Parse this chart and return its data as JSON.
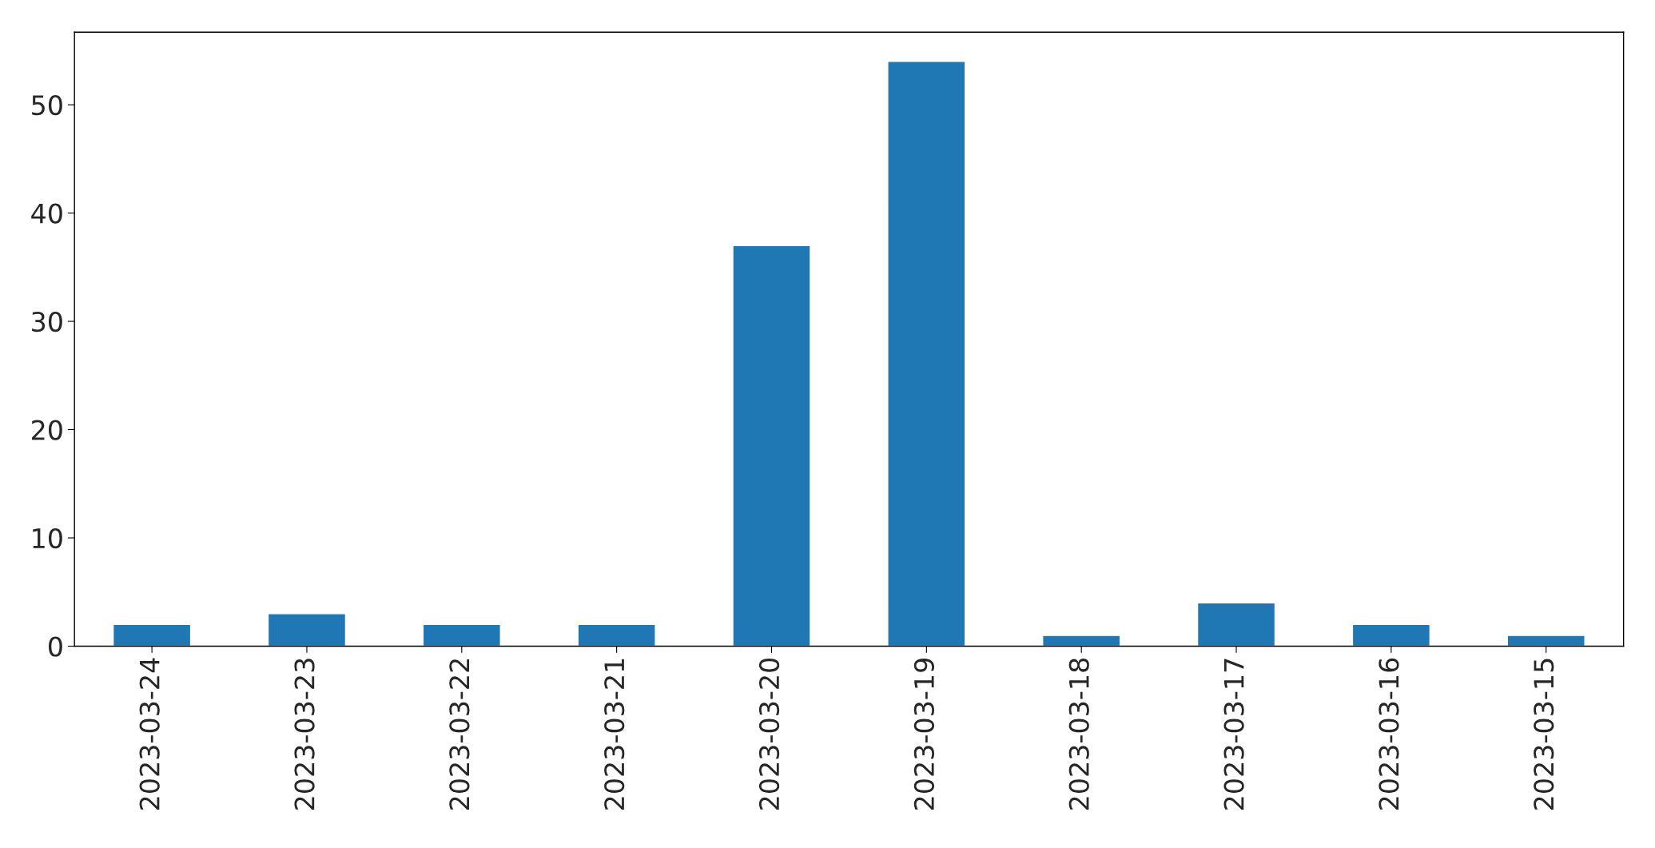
{
  "chart_data": {
    "type": "bar",
    "categories": [
      "2023-03-24",
      "2023-03-23",
      "2023-03-22",
      "2023-03-21",
      "2023-03-20",
      "2023-03-19",
      "2023-03-18",
      "2023-03-17",
      "2023-03-16",
      "2023-03-15"
    ],
    "values": [
      2,
      3,
      2,
      2,
      37,
      54,
      1,
      4,
      2,
      1
    ],
    "color": "#1f77b4",
    "ylim": [
      0,
      56.7
    ],
    "yticks": [
      0,
      10,
      20,
      30,
      40,
      50
    ],
    "grid": false
  }
}
